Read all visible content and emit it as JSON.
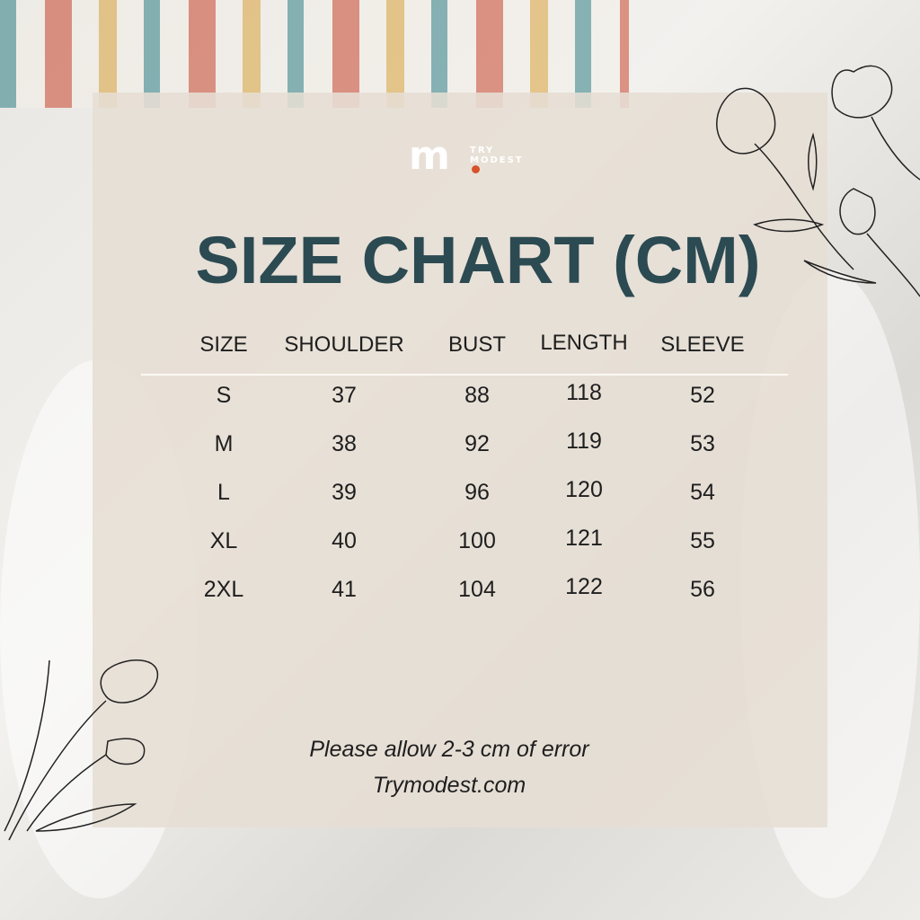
{
  "brand": {
    "logo_letter": "m",
    "logo_text": "TRY MODEST",
    "accent": "#d6532b"
  },
  "title": "SIZE CHART (CM)",
  "table": {
    "headers": [
      "SIZE",
      "SHOULDER",
      "BUST",
      "LENGTH",
      "SLEEVE"
    ],
    "rows": [
      [
        "S",
        "37",
        "88",
        "118",
        "52"
      ],
      [
        "M",
        "38",
        "92",
        "119",
        "53"
      ],
      [
        "L",
        "39",
        "96",
        "120",
        "54"
      ],
      [
        "XL",
        "40",
        "100",
        "121",
        "55"
      ],
      [
        "2XL",
        "41",
        "104",
        "122",
        "56"
      ]
    ]
  },
  "footer": {
    "note": "Please allow 2-3 cm of error",
    "website": "Trymodest.com"
  },
  "colors": {
    "title": "#2c4a52",
    "panel": "#e6ded4"
  }
}
